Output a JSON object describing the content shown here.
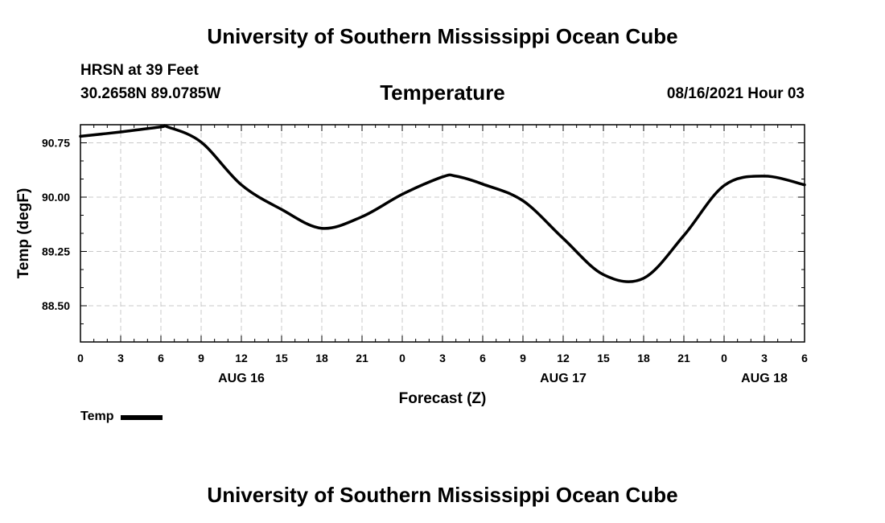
{
  "header": {
    "title": "University of Southern Mississippi Ocean Cube",
    "station": "HRSN at 39 Feet",
    "coords": "30.2658N  89.0785W",
    "timestamp": "08/16/2021 Hour 03"
  },
  "footer": {
    "title": "University of Southern Mississippi Ocean Cube"
  },
  "chart_data": {
    "type": "line",
    "title": "Temperature",
    "xlabel": "Forecast (Z)",
    "ylabel": "Temp (degF)",
    "x_unit": "forecast hour",
    "xlim": [
      0,
      54
    ],
    "ylim": [
      88.0,
      91.0
    ],
    "x_ticks": [
      0,
      3,
      6,
      9,
      12,
      15,
      18,
      21,
      24,
      27,
      30,
      33,
      36,
      39,
      42,
      45,
      48,
      51,
      54
    ],
    "x_tick_labels": [
      "0",
      "3",
      "6",
      "9",
      "12",
      "15",
      "18",
      "21",
      "0",
      "3",
      "6",
      "9",
      "12",
      "15",
      "18",
      "21",
      "0",
      "3",
      "6"
    ],
    "date_labels": [
      {
        "x": 12,
        "label": "AUG 16"
      },
      {
        "x": 36,
        "label": "AUG 17"
      },
      {
        "x": 51,
        "label": "AUG 18"
      }
    ],
    "y_ticks": [
      88.5,
      89.25,
      90.0,
      90.75
    ],
    "y_tick_labels": [
      "88.50",
      "89.25",
      "90.00",
      "90.75"
    ],
    "grid": true,
    "legend_position": "bottom-left",
    "series": [
      {
        "name": "Temp",
        "color": "#000000",
        "x": [
          0,
          3,
          6,
          6.5,
          9,
          12,
          15,
          18,
          21,
          24,
          27,
          28,
          30,
          33,
          36,
          39,
          42,
          45,
          48,
          51,
          54
        ],
        "values": [
          90.84,
          90.9,
          90.97,
          90.97,
          90.76,
          90.17,
          89.83,
          89.57,
          89.73,
          90.04,
          90.28,
          90.29,
          90.18,
          89.95,
          89.43,
          88.93,
          88.88,
          89.47,
          90.16,
          90.29,
          90.17
        ]
      }
    ]
  }
}
